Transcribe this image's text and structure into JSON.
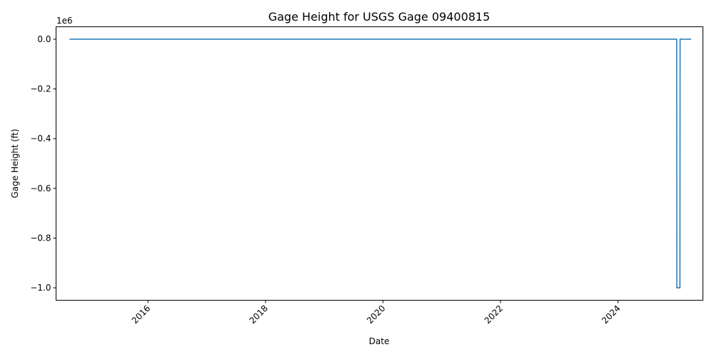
{
  "chart_data": {
    "type": "line",
    "title": "Gage Height for USGS Gage 09400815",
    "xlabel": "Date",
    "ylabel": "Gage Height (ft)",
    "y_offset_label": "1e6",
    "xlim": [
      "2014-06-09",
      "2025-06-12"
    ],
    "ylim": [
      -1.05,
      0.05
    ],
    "x_ticks": [
      {
        "date": "2016-01-01",
        "label": "2016"
      },
      {
        "date": "2018-01-01",
        "label": "2018"
      },
      {
        "date": "2020-01-01",
        "label": "2020"
      },
      {
        "date": "2022-01-01",
        "label": "2022"
      },
      {
        "date": "2024-01-01",
        "label": "2024"
      }
    ],
    "y_ticks": [
      {
        "value": 0.0,
        "label": "0.0"
      },
      {
        "value": -0.2,
        "label": "−0.2"
      },
      {
        "value": -0.4,
        "label": "−0.4"
      },
      {
        "value": -0.6,
        "label": "−0.6"
      },
      {
        "value": -0.8,
        "label": "−0.8"
      },
      {
        "value": -1.0,
        "label": "−1.0"
      }
    ],
    "series": [
      {
        "color": "#1f77b4",
        "points": [
          [
            "2014-09-01",
            0.0
          ],
          [
            "2024-12-31",
            0.0
          ],
          [
            "2025-01-01",
            -1.0
          ],
          [
            "2025-01-20",
            -1.0
          ],
          [
            "2025-01-21",
            0.0
          ],
          [
            "2025-03-31",
            0.0
          ]
        ]
      }
    ],
    "grid": false,
    "legend": "none"
  }
}
